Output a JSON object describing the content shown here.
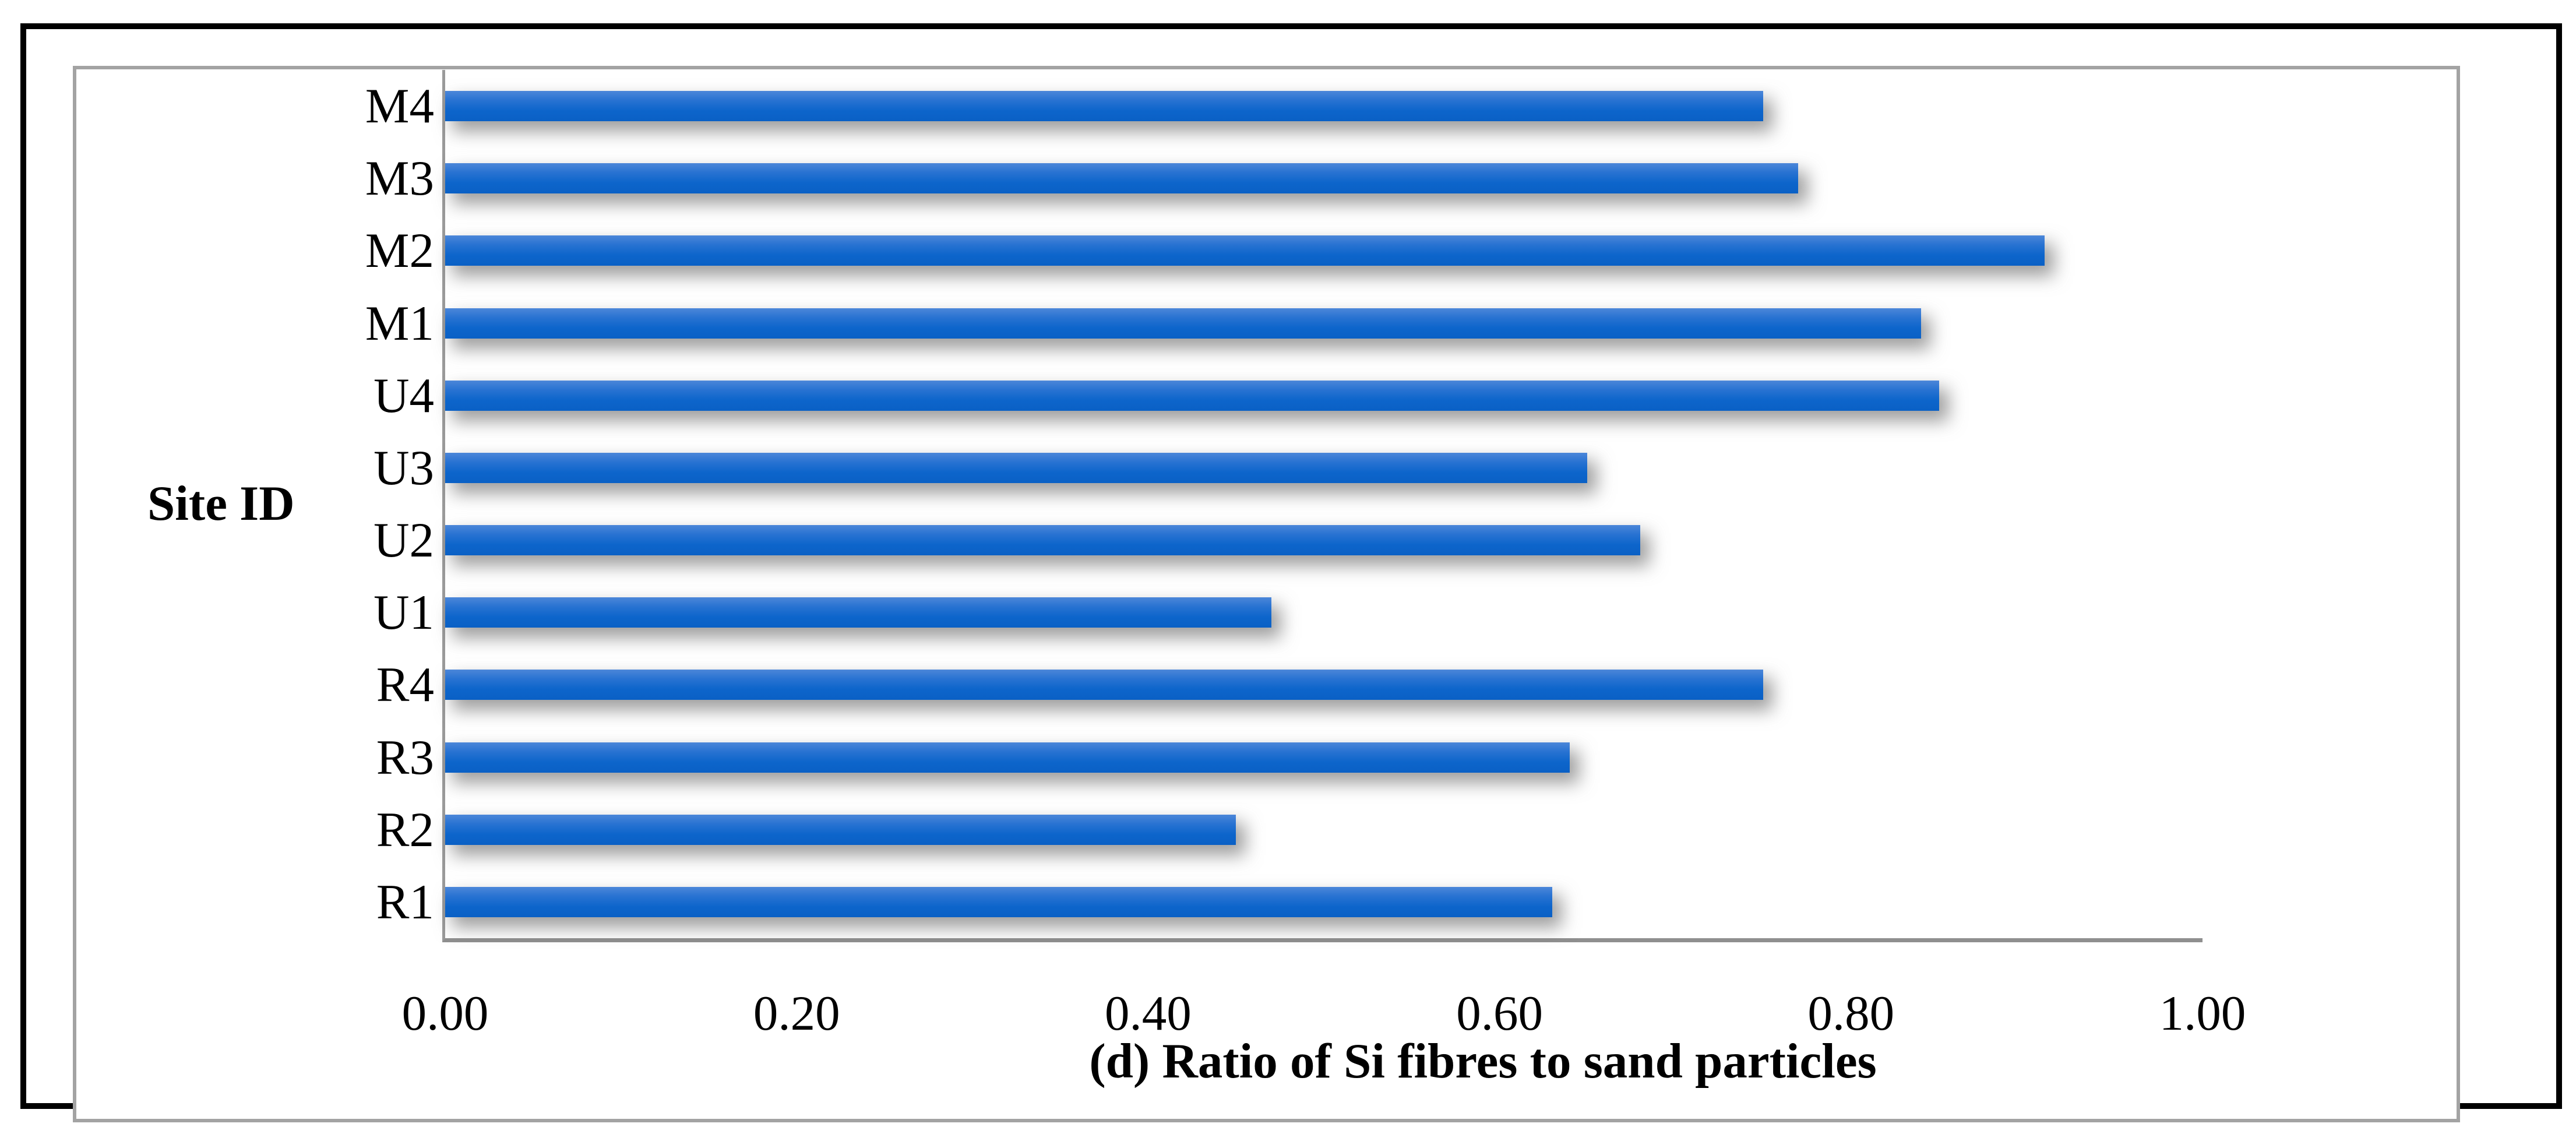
{
  "figure": {
    "y_axis_title": "Site ID",
    "x_axis_title": "(d) Ratio of Si fibres to sand particles"
  },
  "chart_data": {
    "type": "bar",
    "orientation": "horizontal",
    "title": "",
    "xlabel": "(d) Ratio of Si fibres to sand particles",
    "ylabel": "Site ID",
    "categories_top_to_bottom": [
      "M4",
      "M3",
      "M2",
      "M1",
      "U4",
      "U3",
      "U2",
      "U1",
      "R4",
      "R3",
      "R2",
      "R1"
    ],
    "values": [
      0.75,
      0.77,
      0.91,
      0.84,
      0.85,
      0.65,
      0.68,
      0.47,
      0.75,
      0.64,
      0.45,
      0.63
    ],
    "xlim": [
      0.0,
      1.0
    ],
    "x_ticks": [
      {
        "label": "0.00",
        "value": 0.0
      },
      {
        "label": "0.20",
        "value": 0.2
      },
      {
        "label": "0.40",
        "value": 0.4
      },
      {
        "label": "0.60",
        "value": 0.6
      },
      {
        "label": "0.80",
        "value": 0.8
      },
      {
        "label": "1.00",
        "value": 1.0
      }
    ],
    "grid": false,
    "legend": "none",
    "colors": {
      "bar_gradient_top": "#4c87d9",
      "bar_gradient_mid": "#0d65cb",
      "bar_gradient_bottom": "#0a60c5",
      "bar_shadow": "#5f5f5f",
      "axis_line": "#8f8f8f",
      "chart_border": "#a3a3a3",
      "outer_border": "#000000",
      "text": "#000000",
      "background": "#ffffff"
    }
  },
  "layout_note": "single horizontal bar chart panel framed by gray chart border and black figure border"
}
